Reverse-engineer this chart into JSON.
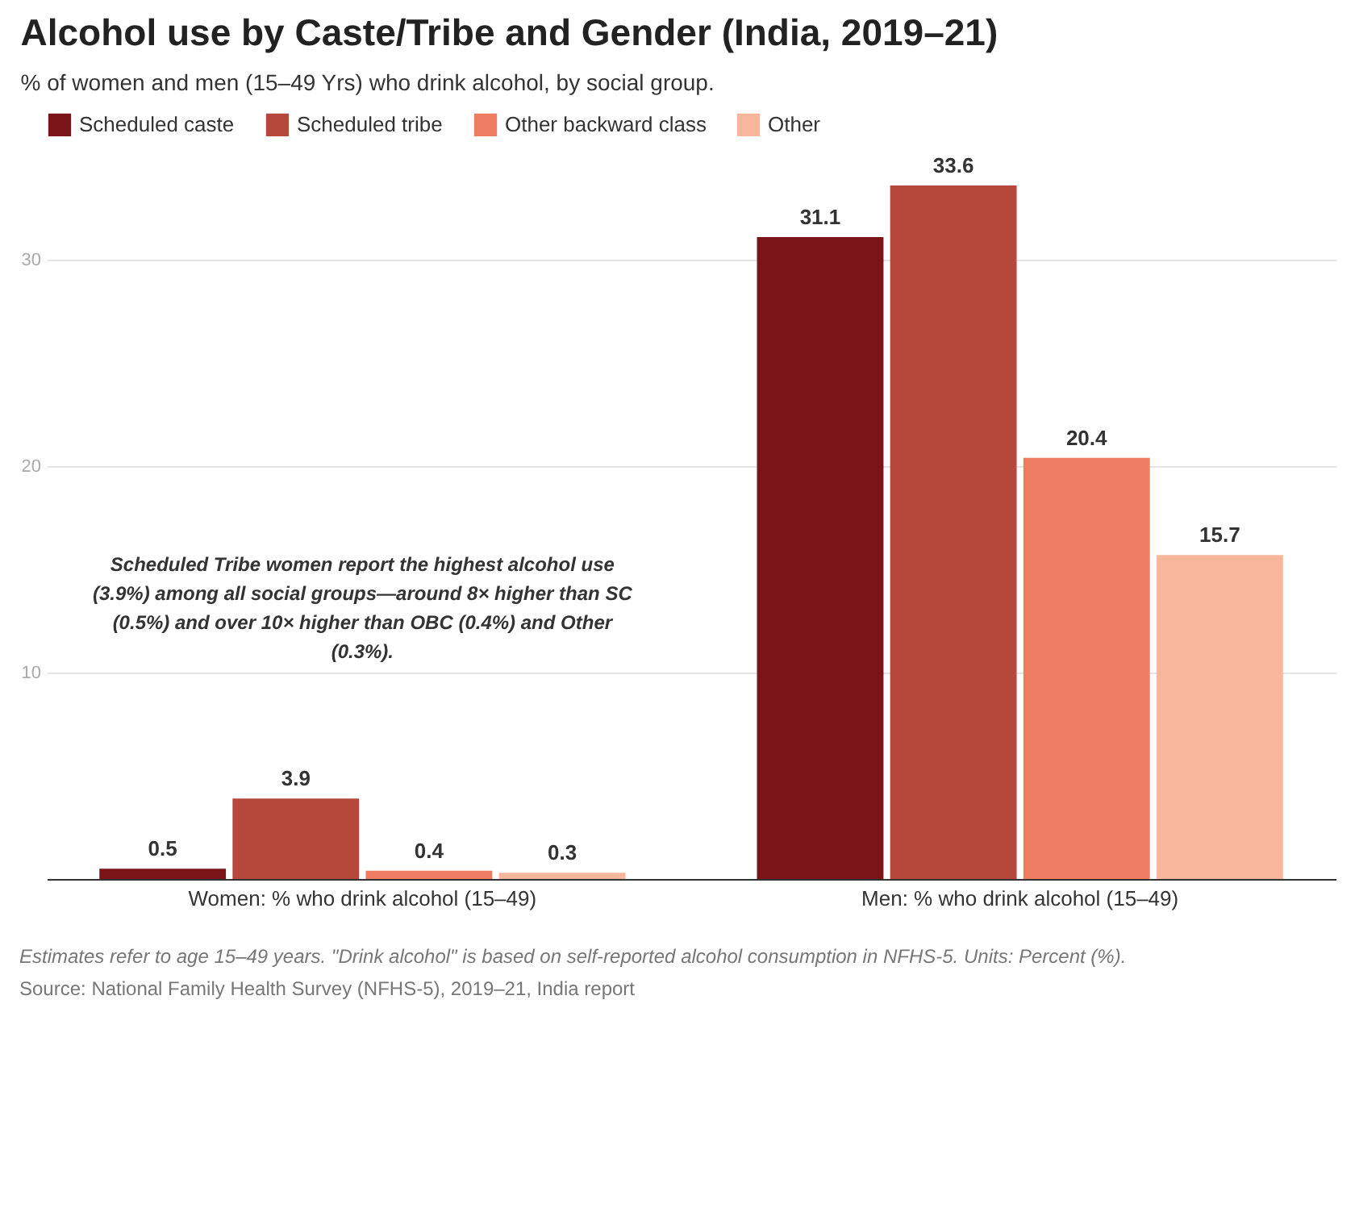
{
  "chart_data": {
    "type": "bar",
    "title": "Alcohol use by Caste/Tribe and Gender (India, 2019–21)",
    "subtitle": "% of women and men (15–49 Yrs) who drink alcohol, by social group.",
    "categories": [
      "Women: % who drink alcohol (15–49)",
      "Men: % who drink alcohol (15–49)"
    ],
    "series": [
      {
        "name": "Scheduled caste",
        "color": "#7b1418",
        "values": [
          0.5,
          31.1
        ]
      },
      {
        "name": "Scheduled tribe",
        "color": "#b5483a",
        "values": [
          3.9,
          33.6
        ]
      },
      {
        "name": "Other backward class",
        "color": "#ee7c60",
        "values": [
          0.4,
          20.4
        ]
      },
      {
        "name": "Other",
        "color": "#f8b79c",
        "values": [
          0.3,
          15.7
        ]
      }
    ],
    "ylim": [
      0,
      33.6
    ],
    "yticks": [
      {
        "value": 0,
        "label": null
      },
      10,
      20,
      30
    ],
    "grid": "y",
    "legend": "top",
    "data_labels": true,
    "annotations": [
      "Scheduled Tribe women report the highest alcohol use (3.9%) among all social groups—around 8× higher than SC (0.5%) and over 10× higher than OBC (0.4%) and Other (0.3%).",
      "Estimates refer to age 15–49 years. \"Drink alcohol\" is based on self-reported alcohol consumption in NFHS-5. Units: Percent (%).",
      "Source: National Family Health Survey (NFHS-5), 2019–21, India report"
    ]
  }
}
